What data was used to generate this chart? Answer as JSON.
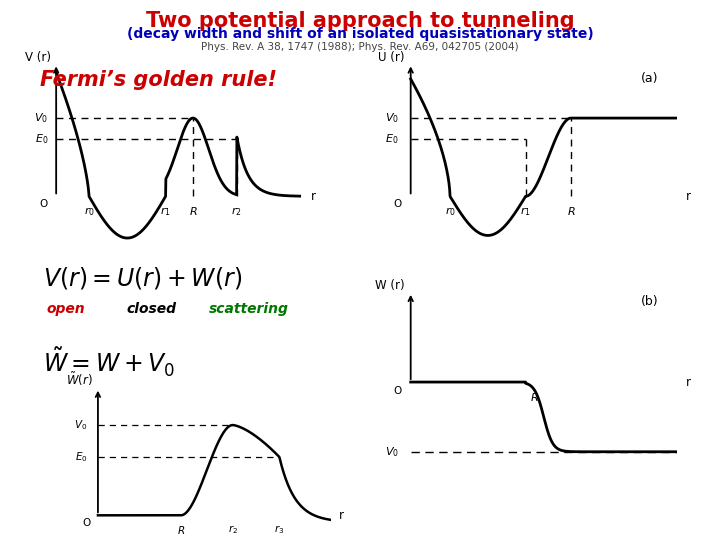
{
  "title": "Two potential approach to tunneling",
  "subtitle": "(decay width and shift of an isolated quasistationary state)",
  "ref": "Phys. Rev. A 38, 1747 (1988); Phys. Rev. A69, 042705 (2004)",
  "fermi_label": "Fermi’s golden rule!",
  "title_color": "#cc0000",
  "subtitle_color": "#0000bb",
  "ref_color": "#444444",
  "fermi_color": "#cc0000",
  "bg_color": "#ffffff",
  "open_label": "open",
  "closed_label": "closed",
  "scattering_label": "scattering",
  "open_color": "#cc0000",
  "closed_color": "#000000",
  "scattering_color": "#007700"
}
